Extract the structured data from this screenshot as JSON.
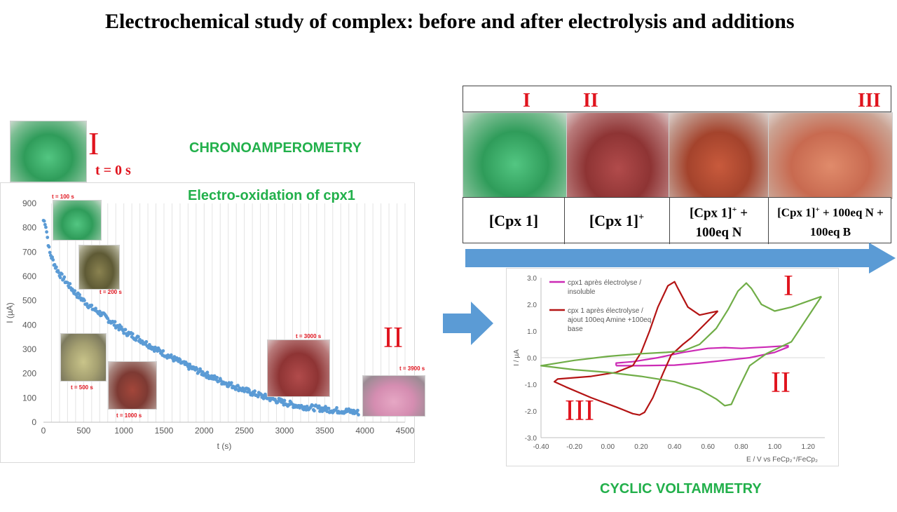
{
  "title": "Electrochemical study of complex:  before and after electrolysis and additions",
  "chrono": {
    "label": "CHRONOAMPEROMETRY",
    "subtitle": "Electro-oxidation of cpx1",
    "initial_roman": "I",
    "initial_time": "t = 0 s",
    "final_roman": "II",
    "photo_labels": [
      "t = 100 s",
      "t = 200 s",
      "t = 500 s",
      "t = 1000 s",
      "t = 3000 s",
      "t = 3900 s"
    ]
  },
  "cv": {
    "label": "CYCLIC VOLTAMMETRY",
    "roman_I": "I",
    "roman_II": "II",
    "roman_III": "III"
  },
  "strip": {
    "romans": [
      "I",
      "II",
      "III"
    ],
    "cells": [
      {
        "main": "[Cpx 1]",
        "sup": "",
        "rest": ""
      },
      {
        "main": "[Cpx 1]",
        "sup": "+",
        "rest": ""
      },
      {
        "main": "[Cpx 1]",
        "sup": "+",
        "rest": " + 100eq N"
      },
      {
        "main": "[Cpx 1]",
        "sup": "+",
        "rest": " + 100eq N + 100eq B"
      }
    ]
  },
  "colors": {
    "chrono_points": "#5b9bd5",
    "cv_magenta": "#cc2ab5",
    "cv_red": "#b41414",
    "cv_green": "#70ad47",
    "arrow": "#5b9bd5",
    "label_green": "#22b04b",
    "roman_red": "#e0141e"
  },
  "chart_data": [
    {
      "type": "scatter",
      "title": "",
      "xlabel": "t (s)",
      "ylabel": "I (µA)",
      "xlim": [
        0,
        4500
      ],
      "ylim": [
        0,
        900
      ],
      "xticks": [
        "0",
        "500",
        "1000",
        "1500",
        "2000",
        "2500",
        "3000",
        "3500",
        "4000",
        "4500"
      ],
      "yticks": [
        "0",
        "100",
        "200",
        "300",
        "400",
        "500",
        "600",
        "700",
        "800",
        "900"
      ],
      "grid": "vertical",
      "series": [
        {
          "x": [
            0,
            25,
            50,
            75,
            100,
            150,
            200,
            250,
            300,
            400,
            500,
            600,
            700,
            800,
            900,
            1000,
            1200,
            1400,
            1600,
            1800,
            2000,
            2200,
            2400,
            2600,
            2800,
            3000,
            3200,
            3400,
            3600,
            3800,
            3900
          ],
          "y": [
            830,
            820,
            760,
            700,
            680,
            640,
            610,
            590,
            570,
            530,
            500,
            470,
            450,
            425,
            400,
            375,
            340,
            300,
            265,
            230,
            200,
            170,
            145,
            120,
            100,
            80,
            65,
            58,
            50,
            45,
            40
          ]
        }
      ]
    },
    {
      "type": "line",
      "title": "",
      "xlabel": "E /  V vs FeCp₂⁺/FeCp₂",
      "ylabel": "I / µA",
      "xlim": [
        -0.4,
        1.3
      ],
      "ylim": [
        -3.0,
        3.0
      ],
      "xticks": [
        "-0.40",
        "-0.20",
        "0.00",
        "0.20",
        "0.40",
        "0.60",
        "0.80",
        "1.00",
        "1.20"
      ],
      "yticks": [
        "-3.0",
        "-2.0",
        "-1.0",
        "0.0",
        "1.0",
        "2.0",
        "3.0"
      ],
      "legend_position": "top-left",
      "series": [
        {
          "name": "cpx1 après électrolyse  / insoluble",
          "color": "#cc2ab5",
          "x": [
            0.05,
            0.2,
            0.4,
            0.55,
            0.7,
            0.85,
            1.0,
            1.08,
            1.08,
            0.95,
            0.8,
            0.7,
            0.6,
            0.45,
            0.3,
            0.15,
            0.05,
            0.05
          ],
          "y": [
            -0.3,
            -0.3,
            -0.28,
            -0.2,
            -0.1,
            0.0,
            0.2,
            0.4,
            0.45,
            0.4,
            0.35,
            0.38,
            0.35,
            0.2,
            0.0,
            -0.15,
            -0.2,
            -0.3
          ]
        },
        {
          "name": "cpx 1 après électrolyse / ajout 100eq Amine +100eq base",
          "color": "#b41414",
          "x": [
            0.66,
            0.55,
            0.48,
            0.42,
            0.4,
            0.36,
            0.3,
            0.25,
            0.2,
            0.15,
            0.05,
            -0.1,
            -0.3,
            -0.32,
            -0.25,
            -0.1,
            0.05,
            0.15,
            0.19,
            0.22,
            0.27,
            0.33,
            0.38,
            0.45,
            0.5,
            0.66
          ],
          "y": [
            1.75,
            1.6,
            1.9,
            2.6,
            2.85,
            2.7,
            1.9,
            1.0,
            0.2,
            -0.3,
            -0.55,
            -0.7,
            -0.8,
            -0.9,
            -1.1,
            -1.5,
            -1.85,
            -2.1,
            -2.15,
            -2.05,
            -1.5,
            -0.6,
            0.1,
            0.5,
            0.75,
            1.75
          ]
        },
        {
          "name": "",
          "color": "#70ad47",
          "x": [
            1.28,
            1.1,
            1.0,
            0.92,
            0.86,
            0.83,
            0.78,
            0.72,
            0.65,
            0.55,
            0.45,
            0.35,
            0.2,
            0.0,
            -0.2,
            -0.4,
            -0.2,
            0.0,
            0.2,
            0.4,
            0.55,
            0.65,
            0.7,
            0.74,
            0.78,
            0.85,
            0.95,
            1.1,
            1.28
          ],
          "y": [
            2.3,
            1.9,
            1.75,
            2.0,
            2.6,
            2.8,
            2.5,
            1.8,
            1.1,
            0.5,
            0.25,
            0.2,
            0.15,
            0.05,
            -0.1,
            -0.3,
            -0.45,
            -0.55,
            -0.7,
            -0.9,
            -1.2,
            -1.55,
            -1.8,
            -1.75,
            -1.2,
            -0.3,
            0.15,
            0.6,
            2.3
          ]
        }
      ]
    }
  ]
}
